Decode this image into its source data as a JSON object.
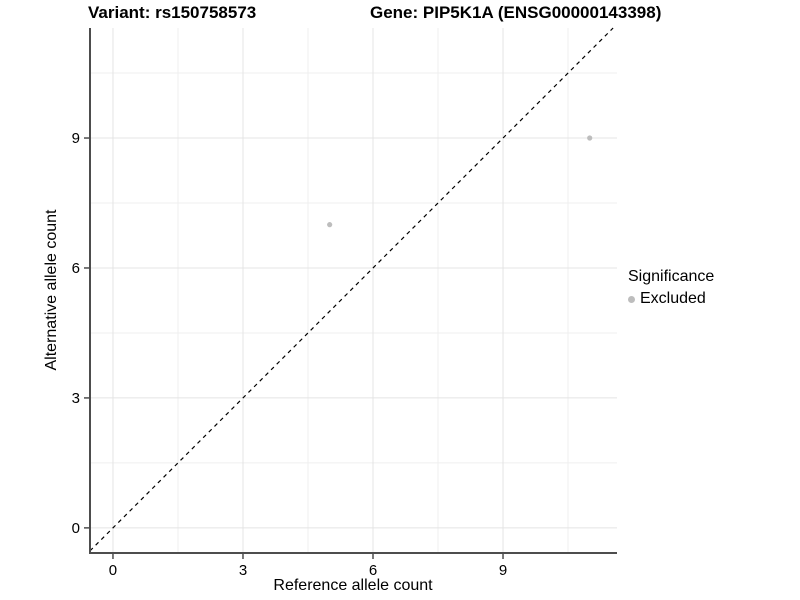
{
  "figure": {
    "title_left": "Variant: rs150758573",
    "title_right": "Gene: PIP5K1A (ENSG00000143398)"
  },
  "chart_data": {
    "type": "scatter",
    "title": "Variant: rs150758573 / Gene: PIP5K1A (ENSG00000143398)",
    "xlabel": "Reference allele count",
    "ylabel": "Alternative allele count",
    "xlim": [
      -0.53,
      11.63
    ],
    "ylim": [
      -0.58,
      11.54
    ],
    "x_ticks": [
      0,
      3,
      6,
      9
    ],
    "y_ticks": [
      0,
      3,
      6,
      9
    ],
    "x_minor_ticks": [
      1.5,
      4.5,
      7.5,
      10.5
    ],
    "y_minor_ticks": [
      1.5,
      4.5,
      7.5,
      10.5
    ],
    "grid": true,
    "series": [
      {
        "name": "Excluded",
        "color": "#bdbdbd",
        "points": [
          {
            "x": 5,
            "y": 7
          },
          {
            "x": 11,
            "y": 9
          }
        ]
      }
    ],
    "reference_line": {
      "type": "identity",
      "style": "dashed",
      "color": "#000000"
    },
    "legend": {
      "title": "Significance",
      "position": "right",
      "items": [
        {
          "label": "Excluded",
          "color": "#bdbdbd"
        }
      ]
    },
    "colors": {
      "axis_line": "#4d4d4d",
      "grid_major": "#e4e4e4",
      "grid_minor": "#efefef",
      "tick_label": "#000000"
    }
  }
}
